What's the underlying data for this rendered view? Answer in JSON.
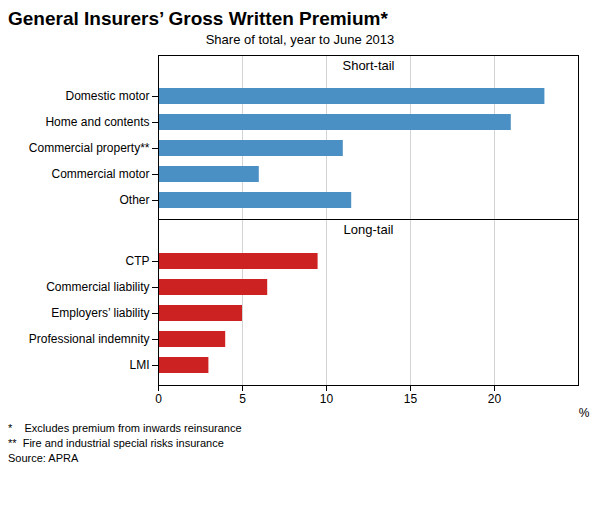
{
  "title": "General Insurers’ Gross Written Premium*",
  "subtitle": "Share of total, year to June 2013",
  "annotations": [
    "*    Excludes premium from inwards reinsurance",
    "**  Fire and industrial special risks insurance",
    "Source: APRA"
  ],
  "chart_data": [
    {
      "type": "bar",
      "orientation": "horizontal",
      "title": "Short-tail",
      "categories": [
        "Domestic motor",
        "Home and contents",
        "Commercial property**",
        "Commercial motor",
        "Other"
      ],
      "values": [
        23,
        21,
        11,
        6,
        11.5
      ],
      "color": "#4a90c4",
      "xlim": [
        0,
        25
      ],
      "xticks": [
        0,
        5,
        10,
        15,
        20
      ],
      "grid": true,
      "tick_labels": "y"
    },
    {
      "type": "bar",
      "orientation": "horizontal",
      "title": "Long-tail",
      "categories": [
        "CTP",
        "Commercial liability",
        "Employers’ liability",
        "Professional indemnity",
        "LMI"
      ],
      "values": [
        9.5,
        6.5,
        5,
        4,
        3
      ],
      "color": "#cc2222",
      "xlim": [
        0,
        25
      ],
      "xticks": [
        0,
        5,
        10,
        15,
        20
      ],
      "xlabel": "%",
      "grid": true
    }
  ]
}
